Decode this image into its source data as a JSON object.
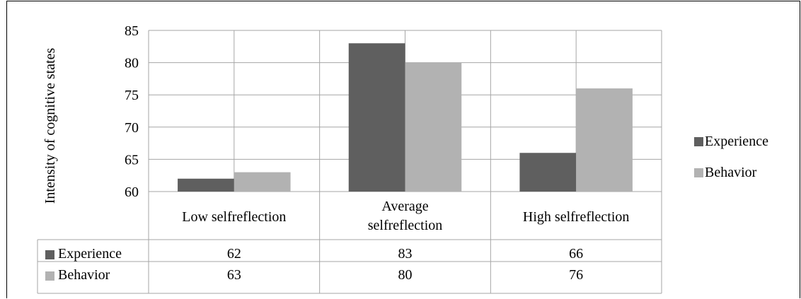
{
  "chart_data": {
    "type": "bar",
    "ylabel": "Intensity of cognitive states",
    "ylim": [
      60,
      85
    ],
    "yticks": [
      60,
      65,
      70,
      75,
      80,
      85
    ],
    "categories": [
      "Low selfreflection",
      "Average selfreflection",
      "High selfreflection"
    ],
    "category_lines": [
      [
        "Low selfreflection"
      ],
      [
        "Average",
        "selfreflection"
      ],
      [
        "High selfreflection"
      ]
    ],
    "series": [
      {
        "name": "Experience",
        "values": [
          62,
          83,
          66
        ],
        "color": "#5f5f5f"
      },
      {
        "name": "Behavior",
        "values": [
          63,
          80,
          76
        ],
        "color": "#b2b2b2"
      }
    ],
    "grid": true,
    "legend_position": "right",
    "data_table": true
  }
}
